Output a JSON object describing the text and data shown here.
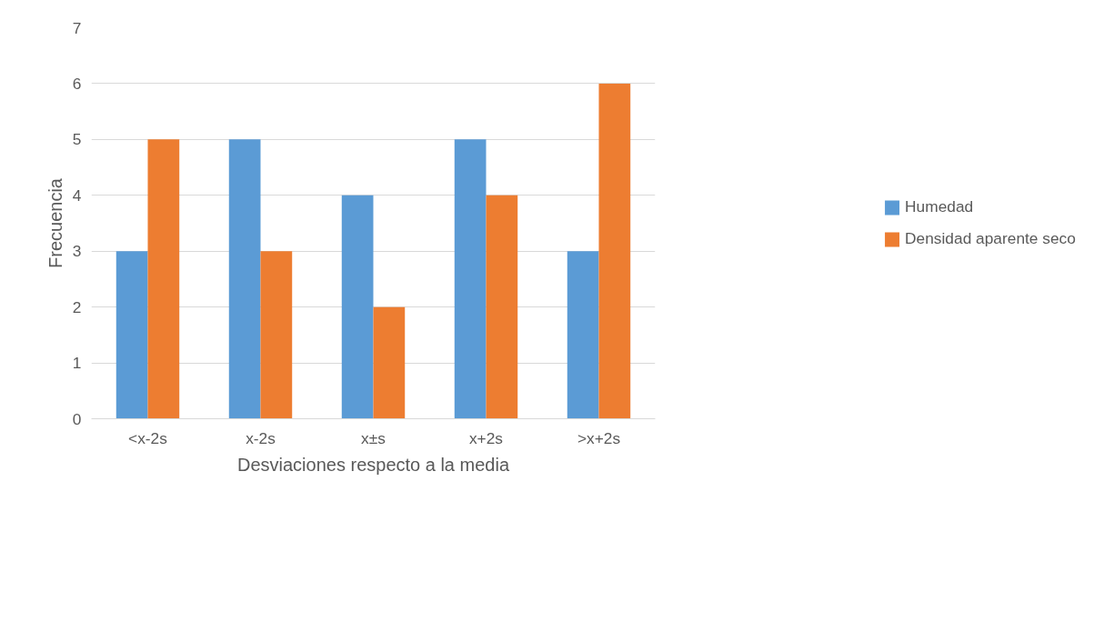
{
  "chart_data": {
    "type": "bar",
    "xlabel": "Desviaciones respecto a la media",
    "ylabel": "Frecuencia",
    "categories": [
      "<x-2s",
      "x-2s",
      "x±s",
      "x+2s",
      ">x+2s"
    ],
    "series": [
      {
        "name": "Humedad",
        "color": "#5b9bd5",
        "values": [
          3,
          5,
          4,
          5,
          3
        ]
      },
      {
        "name": "Densidad aparente seco",
        "color": "#ed7d31",
        "values": [
          5,
          3,
          2,
          4,
          6
        ]
      }
    ],
    "ylim": [
      0,
      7
    ],
    "yticks": [
      0,
      1,
      2,
      3,
      4,
      5,
      6,
      7
    ],
    "grid": "y",
    "legend": "right"
  }
}
